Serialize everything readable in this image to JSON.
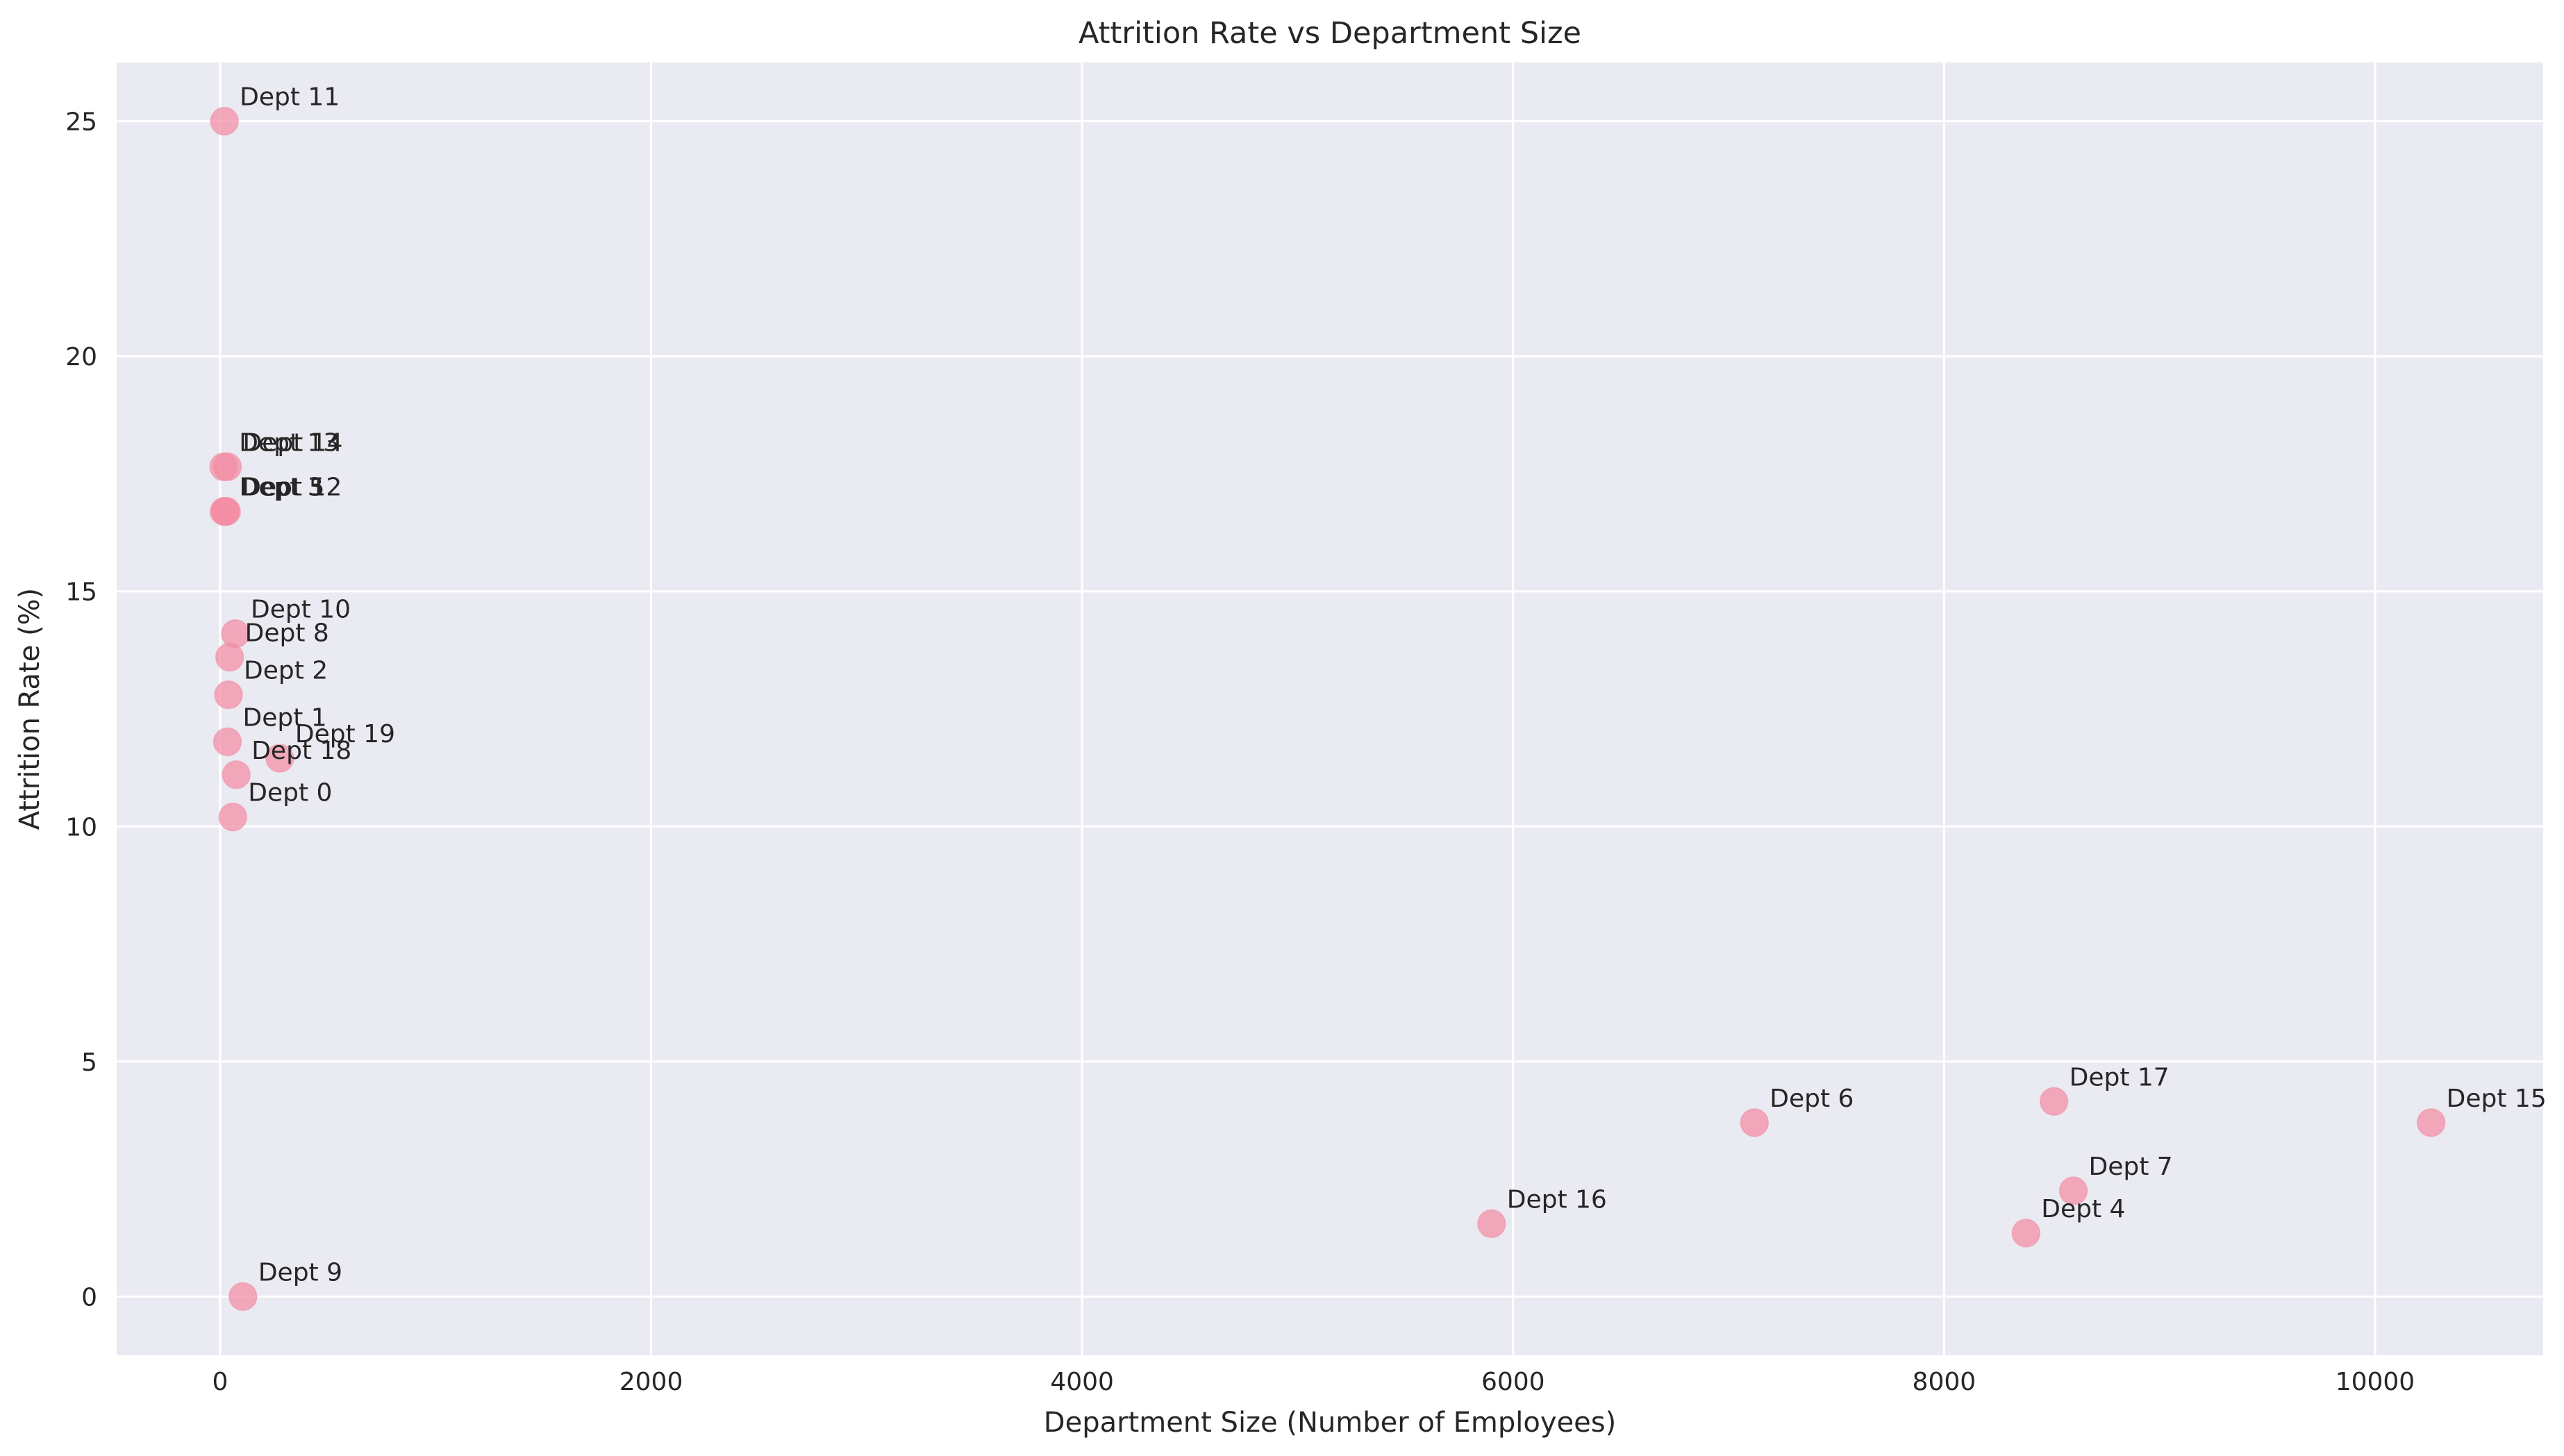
{
  "chart_data": {
    "type": "scatter",
    "title": "Attrition Rate vs Department Size",
    "xlabel": "Department Size (Number of Employees)",
    "ylabel": "Attrition Rate (%)",
    "xlim": [
      -480,
      10780
    ],
    "ylim": [
      -1.25,
      26.25
    ],
    "xticks": [
      0,
      2000,
      4000,
      6000,
      8000,
      10000
    ],
    "yticks": [
      0,
      5,
      10,
      15,
      20,
      25
    ],
    "grid": true,
    "legend": "none",
    "colors": {
      "background": "#eaeaf2",
      "point": "#f48ca3",
      "grid": "#ffffff"
    },
    "points": [
      {
        "label": "Dept 0",
        "x": 59,
        "y": 10.2
      },
      {
        "label": "Dept 1",
        "x": 34,
        "y": 11.8
      },
      {
        "label": "Dept 2",
        "x": 39,
        "y": 12.8
      },
      {
        "label": "Dept 3",
        "x": 18,
        "y": 16.7
      },
      {
        "label": "Dept 4",
        "x": 8380,
        "y": 1.35
      },
      {
        "label": "Dept 5",
        "x": 24,
        "y": 16.7
      },
      {
        "label": "Dept 6",
        "x": 7120,
        "y": 3.7
      },
      {
        "label": "Dept 7",
        "x": 8600,
        "y": 2.25
      },
      {
        "label": "Dept 8",
        "x": 44,
        "y": 13.6
      },
      {
        "label": "Dept 9",
        "x": 106,
        "y": 0.0
      },
      {
        "label": "Dept 10",
        "x": 71,
        "y": 14.1
      },
      {
        "label": "Dept 11",
        "x": 20,
        "y": 25.0
      },
      {
        "label": "Dept 12",
        "x": 30,
        "y": 16.7
      },
      {
        "label": "Dept 13",
        "x": 17,
        "y": 17.65
      },
      {
        "label": "Dept 14",
        "x": 34,
        "y": 17.65
      },
      {
        "label": "Dept 15",
        "x": 10260,
        "y": 3.7
      },
      {
        "label": "Dept 16",
        "x": 5900,
        "y": 1.55
      },
      {
        "label": "Dept 17",
        "x": 8510,
        "y": 4.15
      },
      {
        "label": "Dept 18",
        "x": 75,
        "y": 11.1
      },
      {
        "label": "Dept 19",
        "x": 277,
        "y": 11.45
      }
    ]
  }
}
